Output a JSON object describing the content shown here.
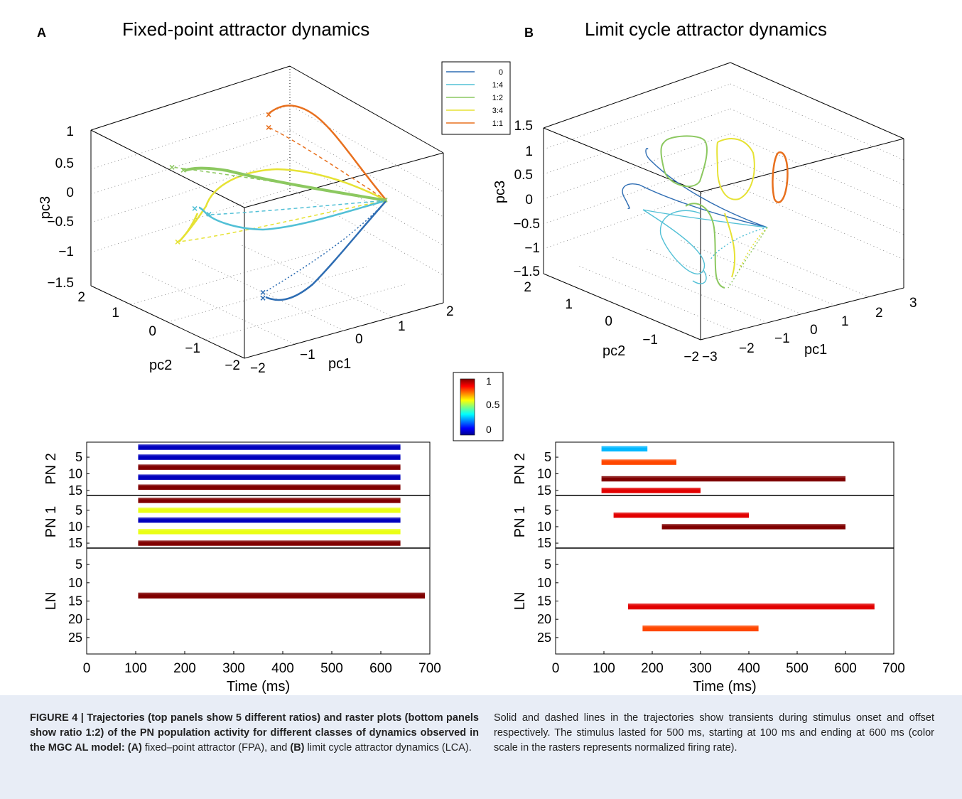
{
  "panel_a": {
    "letter": "A",
    "title": "Fixed-point attractor dynamics"
  },
  "panel_b": {
    "letter": "B",
    "title": "Limit cycle attractor dynamics"
  },
  "legend": {
    "entries": [
      {
        "label": "0",
        "color": "#2e6db3"
      },
      {
        "label": "1:4",
        "color": "#52c0d6"
      },
      {
        "label": "1:2",
        "color": "#8cc860"
      },
      {
        "label": "3:4",
        "color": "#e6e234"
      },
      {
        "label": "1:1",
        "color": "#e8701e"
      }
    ]
  },
  "colorbar": {
    "ticks": [
      "1",
      "0.5",
      "0"
    ]
  },
  "chart_data": [
    {
      "type": "line",
      "panel": "A",
      "title": "Fixed-point attractor dynamics",
      "axes": {
        "x": "pc1",
        "y": "pc2",
        "z": "pc3"
      },
      "xlim": [
        -2,
        2
      ],
      "ylim": [
        -2,
        2
      ],
      "zlim": [
        -1.5,
        1
      ],
      "x_ticks": [
        "−2",
        "−1",
        "0",
        "1",
        "2"
      ],
      "y_ticks": [
        "−2",
        "−1",
        "0",
        "1",
        "2"
      ],
      "z_ticks": [
        "1",
        "0.5",
        "0",
        "−0.5",
        "−1",
        "−1.5"
      ],
      "series": [
        {
          "name": "0",
          "endpoint": [
            -0.6,
            -1.7,
            -1.2
          ]
        },
        {
          "name": "1:4",
          "endpoint": [
            -1.2,
            -0.4,
            -0.2
          ]
        },
        {
          "name": "1:2",
          "endpoint": [
            -1.6,
            0.6,
            0.5
          ]
        },
        {
          "name": "3:4",
          "endpoint": [
            -1.4,
            -0.3,
            -0.8
          ]
        },
        {
          "name": "1:1",
          "endpoint": [
            0.4,
            0.2,
            0.8
          ]
        }
      ],
      "line_styles": {
        "solid": "stimulus onset",
        "dashed": "stimulus offset"
      }
    },
    {
      "type": "line",
      "panel": "B",
      "title": "Limit cycle attractor dynamics",
      "axes": {
        "x": "pc1",
        "y": "pc2",
        "z": "pc3"
      },
      "xlim": [
        -3,
        3
      ],
      "ylim": [
        -2,
        2
      ],
      "zlim": [
        -1.5,
        1.5
      ],
      "x_ticks": [
        "−3",
        "−2",
        "−1",
        "0",
        "1",
        "2",
        "3"
      ],
      "y_ticks": [
        "−2",
        "−1",
        "0",
        "1",
        "2"
      ],
      "z_ticks": [
        "1.5",
        "1",
        "0.5",
        "0",
        "−0.5",
        "−1",
        "−1.5"
      ],
      "series": [
        {
          "name": "0"
        },
        {
          "name": "1:4"
        },
        {
          "name": "1:2"
        },
        {
          "name": "3:4"
        },
        {
          "name": "1:1"
        }
      ]
    },
    {
      "type": "heatmap",
      "panel": "A raster",
      "xlabel": "Time (ms)",
      "xlim": [
        0,
        700
      ],
      "x_ticks": [
        "0",
        "100",
        "200",
        "300",
        "400",
        "500",
        "600",
        "700"
      ],
      "groups": [
        {
          "name": "PN 2",
          "ticks": [
            "5",
            "10",
            "15"
          ]
        },
        {
          "name": "PN 1",
          "ticks": [
            "5",
            "10",
            "15"
          ]
        },
        {
          "name": "LN",
          "ticks": [
            "5",
            "10",
            "15",
            "20",
            "25"
          ]
        }
      ],
      "bands": [
        {
          "group": "PN 2",
          "row": 1.5,
          "start": 105,
          "end": 640,
          "level": 0.05
        },
        {
          "group": "PN 2",
          "row": 4.5,
          "start": 105,
          "end": 640,
          "level": 0.05
        },
        {
          "group": "PN 2",
          "row": 7.5,
          "start": 105,
          "end": 640,
          "level": 1.0
        },
        {
          "group": "PN 2",
          "row": 10.5,
          "start": 105,
          "end": 640,
          "level": 0.05
        },
        {
          "group": "PN 2",
          "row": 13.5,
          "start": 105,
          "end": 640,
          "level": 1.0
        },
        {
          "group": "PN 1",
          "row": 1.5,
          "start": 105,
          "end": 640,
          "level": 1.0
        },
        {
          "group": "PN 1",
          "row": 4.5,
          "start": 105,
          "end": 640,
          "level": 0.6
        },
        {
          "group": "PN 1",
          "row": 7.5,
          "start": 105,
          "end": 640,
          "level": 0.05
        },
        {
          "group": "PN 1",
          "row": 11,
          "start": 105,
          "end": 640,
          "level": 0.6
        },
        {
          "group": "PN 1",
          "row": 14.5,
          "start": 105,
          "end": 640,
          "level": 1.0
        },
        {
          "group": "LN",
          "row": 13,
          "start": 105,
          "end": 690,
          "level": 1.0
        }
      ]
    },
    {
      "type": "heatmap",
      "panel": "B raster",
      "xlabel": "Time (ms)",
      "xlim": [
        0,
        700
      ],
      "x_ticks": [
        "0",
        "100",
        "200",
        "300",
        "400",
        "500",
        "600",
        "700"
      ],
      "groups": [
        {
          "name": "PN 2",
          "ticks": [
            "5",
            "10",
            "15"
          ]
        },
        {
          "name": "PN 1",
          "ticks": [
            "5",
            "10",
            "15"
          ]
        },
        {
          "name": "LN",
          "ticks": [
            "5",
            "10",
            "15",
            "20",
            "25"
          ]
        }
      ],
      "bands": [
        {
          "group": "PN 2",
          "row": 2,
          "start": 95,
          "end": 190,
          "level": 0.3
        },
        {
          "group": "PN 2",
          "row": 6,
          "start": 95,
          "end": 250,
          "level": 0.8
        },
        {
          "group": "PN 2",
          "row": 11,
          "start": 95,
          "end": 600,
          "level": 1.0
        },
        {
          "group": "PN 2",
          "row": 14.5,
          "start": 95,
          "end": 300,
          "level": 0.9
        },
        {
          "group": "PN 1",
          "row": 6,
          "start": 120,
          "end": 400,
          "level": 0.9
        },
        {
          "group": "PN 1",
          "row": 9.5,
          "start": 220,
          "end": 600,
          "level": 1.0
        },
        {
          "group": "LN",
          "row": 16,
          "start": 150,
          "end": 660,
          "level": 0.9
        },
        {
          "group": "LN",
          "row": 22,
          "start": 180,
          "end": 420,
          "level": 0.8
        }
      ]
    }
  ],
  "caption": {
    "left_bold": "FIGURE 4 | Trajectories (top panels show 5 different ratios) and raster plots (bottom panels show ratio 1:2) of the PN population activity for different classes of dynamics observed in the MGC AL model: (A)",
    "left_rest": " fixed–point attractor (FPA), and ",
    "left_bold2": "(B)",
    "left_rest2": " limit cycle attractor dynamics (LCA).",
    "right": "Solid and dashed lines in the trajectories show transients during stimulus onset and offset respectively. The stimulus lasted for 500 ms, starting at 100 ms and ending at 600 ms (color scale in the rasters represents normalized firing rate)."
  }
}
